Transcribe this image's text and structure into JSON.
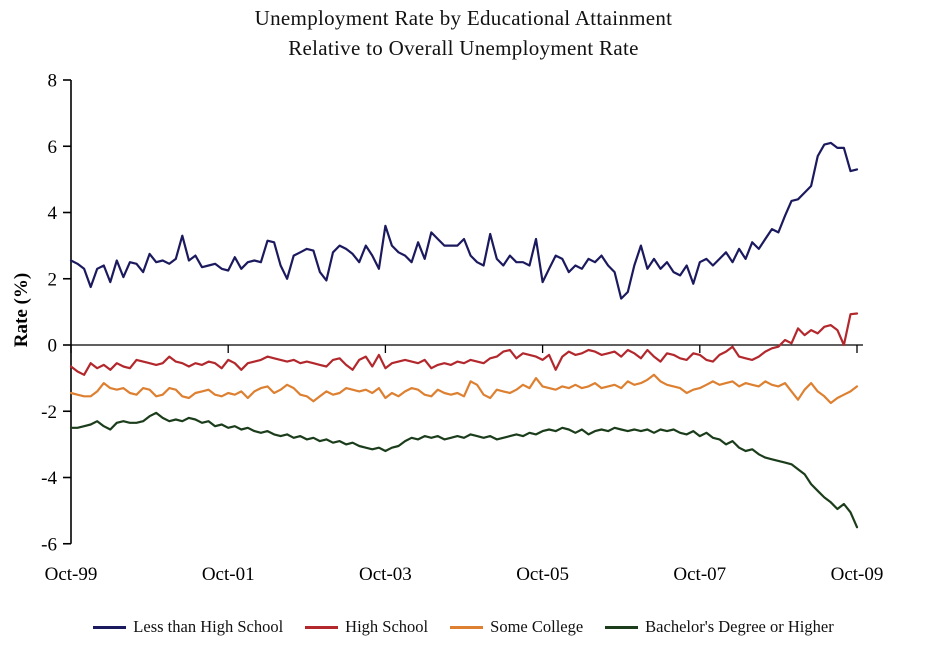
{
  "chart_data": {
    "type": "line",
    "title": "Unemployment Rate by Educational Attainment",
    "subtitle": "Relative to Overall Unemployment Rate",
    "ylabel": "Rate (%)",
    "xlabel": "",
    "ylim": [
      -6,
      8
    ],
    "y_ticks": [
      8,
      6,
      4,
      2,
      0,
      -2,
      -4,
      -6
    ],
    "x_tick_labels": [
      "Oct-99",
      "Oct-01",
      "Oct-03",
      "Oct-05",
      "Oct-07",
      "Oct-09"
    ],
    "x_tick_month_index": [
      0,
      24,
      48,
      72,
      96,
      120
    ],
    "x_range": [
      "Oct-1999",
      "Oct-2009"
    ],
    "x_frequency": "monthly",
    "grid": false,
    "legend_position": "bottom",
    "axis_color": "#000000",
    "series": [
      {
        "name": "Less than High School",
        "color": "#1c1a5e",
        "values": [
          2.55,
          2.45,
          2.3,
          1.75,
          2.3,
          2.4,
          1.9,
          2.55,
          2.05,
          2.5,
          2.45,
          2.2,
          2.75,
          2.5,
          2.55,
          2.45,
          2.6,
          3.3,
          2.55,
          2.7,
          2.35,
          2.4,
          2.45,
          2.3,
          2.25,
          2.65,
          2.3,
          2.5,
          2.55,
          2.5,
          3.15,
          3.1,
          2.4,
          2.0,
          2.7,
          2.8,
          2.9,
          2.85,
          2.2,
          1.95,
          2.8,
          3.0,
          2.9,
          2.75,
          2.5,
          3.0,
          2.7,
          2.3,
          3.6,
          3.0,
          2.8,
          2.7,
          2.5,
          3.1,
          2.6,
          3.4,
          3.2,
          3.0,
          3.0,
          3.0,
          3.2,
          2.7,
          2.5,
          2.4,
          3.35,
          2.6,
          2.4,
          2.7,
          2.5,
          2.5,
          2.4,
          3.2,
          1.9,
          2.3,
          2.7,
          2.6,
          2.2,
          2.4,
          2.3,
          2.6,
          2.5,
          2.7,
          2.4,
          2.2,
          1.4,
          1.6,
          2.4,
          3.0,
          2.3,
          2.6,
          2.3,
          2.5,
          2.2,
          2.1,
          2.4,
          1.85,
          2.5,
          2.6,
          2.4,
          2.6,
          2.8,
          2.5,
          2.9,
          2.6,
          3.1,
          2.9,
          3.2,
          3.5,
          3.4,
          3.9,
          4.35,
          4.4,
          4.6,
          4.8,
          5.7,
          6.05,
          6.1,
          5.95,
          5.95,
          5.25,
          5.3
        ]
      },
      {
        "name": "High School",
        "color": "#b2282d",
        "values": [
          -0.65,
          -0.8,
          -0.9,
          -0.55,
          -0.7,
          -0.6,
          -0.75,
          -0.55,
          -0.65,
          -0.7,
          -0.45,
          -0.5,
          -0.55,
          -0.6,
          -0.55,
          -0.35,
          -0.5,
          -0.55,
          -0.65,
          -0.55,
          -0.6,
          -0.5,
          -0.55,
          -0.7,
          -0.45,
          -0.55,
          -0.75,
          -0.55,
          -0.5,
          -0.45,
          -0.35,
          -0.4,
          -0.45,
          -0.5,
          -0.45,
          -0.55,
          -0.5,
          -0.55,
          -0.6,
          -0.65,
          -0.45,
          -0.4,
          -0.6,
          -0.75,
          -0.45,
          -0.35,
          -0.65,
          -0.3,
          -0.7,
          -0.55,
          -0.5,
          -0.45,
          -0.5,
          -0.55,
          -0.45,
          -0.7,
          -0.6,
          -0.55,
          -0.6,
          -0.5,
          -0.55,
          -0.45,
          -0.5,
          -0.55,
          -0.4,
          -0.35,
          -0.2,
          -0.15,
          -0.4,
          -0.25,
          -0.3,
          -0.35,
          -0.45,
          -0.3,
          -0.75,
          -0.35,
          -0.2,
          -0.3,
          -0.25,
          -0.15,
          -0.2,
          -0.3,
          -0.25,
          -0.2,
          -0.35,
          -0.15,
          -0.25,
          -0.4,
          -0.15,
          -0.35,
          -0.5,
          -0.25,
          -0.3,
          -0.4,
          -0.45,
          -0.25,
          -0.3,
          -0.45,
          -0.5,
          -0.3,
          -0.2,
          -0.05,
          -0.35,
          -0.4,
          -0.45,
          -0.35,
          -0.2,
          -0.1,
          -0.05,
          0.15,
          0.05,
          0.5,
          0.3,
          0.45,
          0.35,
          0.55,
          0.6,
          0.45,
          0.0,
          0.93,
          0.95
        ]
      },
      {
        "name": "Some College",
        "color": "#dd8031",
        "values": [
          -1.45,
          -1.5,
          -1.55,
          -1.55,
          -1.4,
          -1.15,
          -1.3,
          -1.35,
          -1.3,
          -1.45,
          -1.5,
          -1.3,
          -1.35,
          -1.55,
          -1.5,
          -1.3,
          -1.35,
          -1.55,
          -1.6,
          -1.45,
          -1.4,
          -1.35,
          -1.5,
          -1.55,
          -1.45,
          -1.5,
          -1.4,
          -1.6,
          -1.4,
          -1.3,
          -1.25,
          -1.45,
          -1.35,
          -1.2,
          -1.3,
          -1.5,
          -1.55,
          -1.7,
          -1.55,
          -1.4,
          -1.5,
          -1.45,
          -1.3,
          -1.35,
          -1.4,
          -1.35,
          -1.45,
          -1.3,
          -1.6,
          -1.45,
          -1.55,
          -1.4,
          -1.3,
          -1.35,
          -1.5,
          -1.55,
          -1.35,
          -1.45,
          -1.5,
          -1.45,
          -1.55,
          -1.1,
          -1.2,
          -1.5,
          -1.6,
          -1.35,
          -1.4,
          -1.45,
          -1.35,
          -1.2,
          -1.3,
          -1.0,
          -1.25,
          -1.3,
          -1.35,
          -1.25,
          -1.3,
          -1.2,
          -1.3,
          -1.25,
          -1.15,
          -1.3,
          -1.25,
          -1.2,
          -1.3,
          -1.1,
          -1.2,
          -1.15,
          -1.05,
          -0.9,
          -1.1,
          -1.2,
          -1.25,
          -1.3,
          -1.45,
          -1.35,
          -1.3,
          -1.2,
          -1.1,
          -1.2,
          -1.15,
          -1.1,
          -1.25,
          -1.15,
          -1.2,
          -1.25,
          -1.1,
          -1.2,
          -1.25,
          -1.15,
          -1.4,
          -1.65,
          -1.35,
          -1.15,
          -1.4,
          -1.55,
          -1.75,
          -1.6,
          -1.5,
          -1.4,
          -1.25
        ]
      },
      {
        "name": "Bachelor's Degree or Higher",
        "color": "#1b3d1b",
        "values": [
          -2.5,
          -2.5,
          -2.45,
          -2.4,
          -2.3,
          -2.45,
          -2.55,
          -2.35,
          -2.3,
          -2.35,
          -2.35,
          -2.3,
          -2.15,
          -2.05,
          -2.2,
          -2.3,
          -2.25,
          -2.3,
          -2.2,
          -2.25,
          -2.35,
          -2.3,
          -2.45,
          -2.4,
          -2.5,
          -2.45,
          -2.55,
          -2.5,
          -2.6,
          -2.65,
          -2.6,
          -2.7,
          -2.75,
          -2.7,
          -2.8,
          -2.75,
          -2.85,
          -2.8,
          -2.9,
          -2.85,
          -2.95,
          -2.9,
          -3.0,
          -2.95,
          -3.05,
          -3.1,
          -3.15,
          -3.1,
          -3.2,
          -3.1,
          -3.05,
          -2.9,
          -2.8,
          -2.85,
          -2.75,
          -2.8,
          -2.75,
          -2.85,
          -2.8,
          -2.75,
          -2.8,
          -2.7,
          -2.75,
          -2.8,
          -2.75,
          -2.85,
          -2.8,
          -2.75,
          -2.7,
          -2.75,
          -2.65,
          -2.7,
          -2.6,
          -2.55,
          -2.6,
          -2.5,
          -2.55,
          -2.65,
          -2.55,
          -2.7,
          -2.6,
          -2.55,
          -2.6,
          -2.5,
          -2.55,
          -2.6,
          -2.55,
          -2.6,
          -2.55,
          -2.65,
          -2.55,
          -2.6,
          -2.55,
          -2.65,
          -2.7,
          -2.6,
          -2.75,
          -2.65,
          -2.8,
          -2.85,
          -3.0,
          -2.9,
          -3.1,
          -3.2,
          -3.15,
          -3.3,
          -3.4,
          -3.45,
          -3.5,
          -3.55,
          -3.6,
          -3.75,
          -3.9,
          -4.2,
          -4.4,
          -4.6,
          -4.75,
          -4.95,
          -4.8,
          -5.05,
          -5.5
        ]
      }
    ]
  }
}
